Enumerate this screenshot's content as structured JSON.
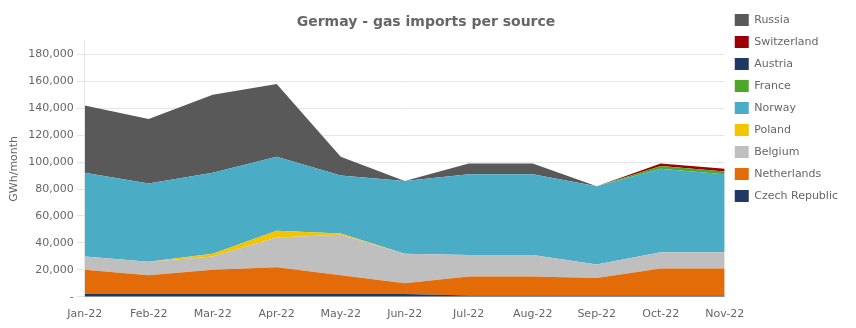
{
  "chart_data": {
    "type": "area",
    "stacked": true,
    "title": "Germay - gas imports per source",
    "ylabel": "GWh/month",
    "categories": [
      "Jan-22",
      "Feb-22",
      "Mar-22",
      "Apr-22",
      "May-22",
      "Jun-22",
      "Jul-22",
      "Aug-22",
      "Sep-22",
      "Oct-22",
      "Nov-22"
    ],
    "series": [
      {
        "name": "Czech Republic",
        "color": "#203864",
        "values": [
          2000,
          2000,
          2000,
          2000,
          2000,
          2000,
          1000,
          1000,
          1000,
          1000,
          1000
        ]
      },
      {
        "name": "Netherlands",
        "color": "#E36C09",
        "values": [
          18000,
          14000,
          18000,
          20000,
          14000,
          8000,
          14000,
          14000,
          13000,
          20000,
          20000
        ]
      },
      {
        "name": "Belgium",
        "color": "#BFBFBF",
        "values": [
          10000,
          10000,
          10000,
          22000,
          30000,
          22000,
          16000,
          16000,
          10000,
          12000,
          12000
        ]
      },
      {
        "name": "Poland",
        "color": "#F2C500",
        "values": [
          0,
          0,
          2000,
          5000,
          1000,
          0,
          0,
          0,
          0,
          0,
          0
        ]
      },
      {
        "name": "Norway",
        "color": "#4BACC6",
        "values": [
          62000,
          58000,
          60000,
          55000,
          43000,
          54000,
          60000,
          60000,
          58000,
          62000,
          58000
        ]
      },
      {
        "name": "France",
        "color": "#4EA72A",
        "values": [
          0,
          0,
          0,
          0,
          0,
          0,
          0,
          0,
          0,
          2000,
          2000
        ]
      },
      {
        "name": "Austria",
        "color": "#1F3864",
        "values": [
          0,
          0,
          0,
          0,
          0,
          0,
          0,
          0,
          0,
          0,
          0
        ]
      },
      {
        "name": "Switzerland",
        "color": "#9C0006",
        "values": [
          0,
          0,
          0,
          0,
          0,
          0,
          0,
          0,
          0,
          2000,
          2000
        ]
      },
      {
        "name": "Russia",
        "color": "#595959",
        "values": [
          50000,
          48000,
          58000,
          54000,
          14000,
          0,
          8000,
          8000,
          0,
          0,
          0
        ]
      }
    ],
    "ylim": [
      0,
      190000
    ],
    "yticks": [
      {
        "value": 0,
        "label": "-"
      },
      {
        "value": 20000,
        "label": "20,000"
      },
      {
        "value": 40000,
        "label": "40,000"
      },
      {
        "value": 60000,
        "label": "60,000"
      },
      {
        "value": 80000,
        "label": "80,000"
      },
      {
        "value": 100000,
        "label": "100,000"
      },
      {
        "value": 120000,
        "label": "120,000"
      },
      {
        "value": 140000,
        "label": "140,000"
      },
      {
        "value": 160000,
        "label": "160,000"
      },
      {
        "value": 180000,
        "label": "180,000"
      }
    ],
    "grid": "y",
    "legend": "right"
  }
}
